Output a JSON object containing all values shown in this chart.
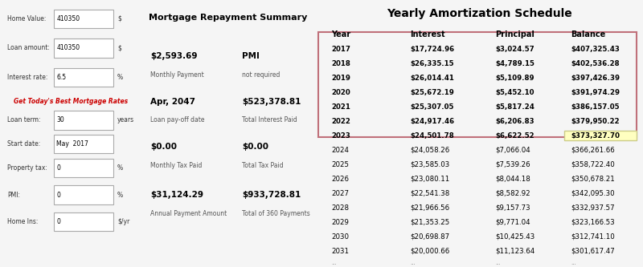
{
  "title_right": "Yearly Amortization Schedule",
  "title_left": "Mortgage Repayment Summary",
  "form_fields": [
    {
      "label": "Home Value:",
      "value": "410350",
      "unit": "$"
    },
    {
      "label": "Loan amount:",
      "value": "410350",
      "unit": "$"
    },
    {
      "label": "Interest rate:",
      "value": "6.5",
      "unit": "%"
    },
    {
      "label": "Loan term:",
      "value": "30",
      "unit": "years"
    },
    {
      "label": "Start date:",
      "value": "May  2017",
      "unit": ""
    },
    {
      "label": "Property tax:",
      "value": "0",
      "unit": "%"
    },
    {
      "label": "PMI:",
      "value": "0",
      "unit": "%"
    },
    {
      "label": "Home Ins:",
      "value": "0",
      "unit": "$/yr"
    }
  ],
  "link_text": "Get Today's Best Mortgage Rates",
  "summary_items": [
    {
      "value": "$2,593.69",
      "label": "Monthly Payment",
      "value2": "PMI",
      "label2": "not required"
    },
    {
      "value": "Apr, 2047",
      "label": "Loan pay-off date",
      "value2": "$523,378.81",
      "label2": "Total Interest Paid"
    },
    {
      "value": "$0.00",
      "label": "Monthly Tax Paid",
      "value2": "$0.00",
      "label2": "Total Tax Paid"
    },
    {
      "value": "$31,124.29",
      "label": "Annual Payment Amount",
      "value2": "$933,728.81",
      "label2": "Total of 360 Payments"
    }
  ],
  "table_headers": [
    "Year",
    "Interest",
    "Principal",
    "Balance"
  ],
  "table_data": [
    [
      "2017",
      "$17,724.96",
      "$3,024.57",
      "$407,325.43"
    ],
    [
      "2018",
      "$26,335.15",
      "$4,789.15",
      "$402,536.28"
    ],
    [
      "2019",
      "$26,014.41",
      "$5,109.89",
      "$397,426.39"
    ],
    [
      "2020",
      "$25,672.19",
      "$5,452.10",
      "$391,974.29"
    ],
    [
      "2021",
      "$25,307.05",
      "$5,817.24",
      "$386,157.05"
    ],
    [
      "2022",
      "$24,917.46",
      "$6,206.83",
      "$379,950.22"
    ],
    [
      "2023",
      "$24,501.78",
      "$6,622.52",
      "$373,327.70"
    ],
    [
      "2024",
      "$24,058.26",
      "$7,066.04",
      "$366,261.66"
    ],
    [
      "2025",
      "$23,585.03",
      "$7,539.26",
      "$358,722.40"
    ],
    [
      "2026",
      "$23,080.11",
      "$8,044.18",
      "$350,678.21"
    ],
    [
      "2027",
      "$22,541.38",
      "$8,582.92",
      "$342,095.30"
    ],
    [
      "2028",
      "$21,966.56",
      "$9,157.73",
      "$332,937.57"
    ],
    [
      "2029",
      "$21,353.25",
      "$9,771.04",
      "$323,166.53"
    ],
    [
      "2030",
      "$20,698.87",
      "$10,425.43",
      "$312,741.10"
    ],
    [
      "2031",
      "$20,000.66",
      "$11,123.64",
      "$301,617.47"
    ]
  ],
  "highlighted_rows": [
    0,
    1,
    2,
    3,
    4,
    5,
    6
  ],
  "highlighted_balance_row": 6,
  "box_border_color": "#c0707a",
  "highlight_balance_color": "#ffffc0",
  "bg_color": "#f0f0f0",
  "form_bg": "#e8e8e8",
  "input_bg": "#ffffff",
  "link_color": "#cc0000",
  "header_color": "#000000",
  "text_color": "#000000",
  "bold_value_color": "#000000"
}
